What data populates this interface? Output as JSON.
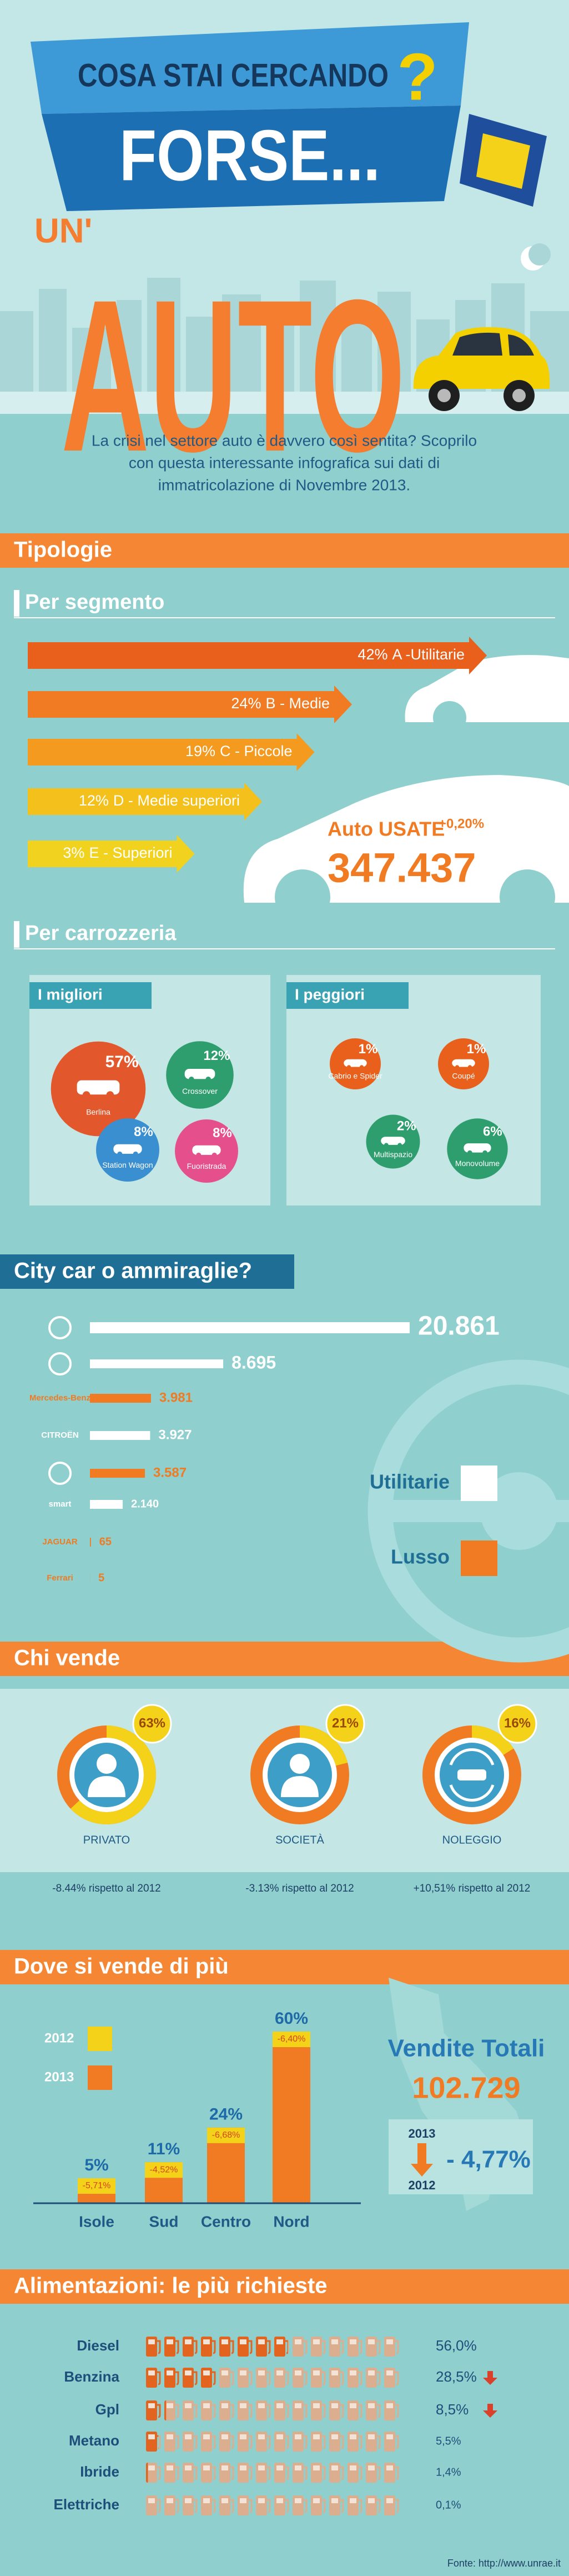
{
  "header": {
    "line1": "COSA STAI CERCANDO",
    "question_mark": "?",
    "line2": "FORSE...",
    "line3": "UN'",
    "line4": "AUTO"
  },
  "intro": [
    "La crisi nel settore auto è davvero così sentita? Scoprilo",
    "con questa interessante infografica sui dati di",
    "immatricolazione di Novembre 2013."
  ],
  "sections": {
    "tipologie": "Tipologie",
    "segmento": "Per segmento",
    "carrozzeria": "Per carrozzeria",
    "citycar": "City car o ammiraglie?",
    "chi_vende": "Chi vende",
    "dove": "Dove si vende di più",
    "alimentazioni": "Alimentazioni: le più richieste"
  },
  "used_cars": {
    "label": "Auto USATE",
    "change": "+0,20%",
    "value": "347.437"
  },
  "totals": {
    "title": "Vendite Totali",
    "value": "102.729",
    "year_from": "2013",
    "year_to": "2012",
    "change": "- 4,77%"
  },
  "source": "Fonte: http://www.unrae.it",
  "chart_data": [
    {
      "type": "arrow-bar",
      "categories": [
        "A -Utilitarie",
        "B - Medie",
        "C - Piccole",
        "D - Medie superiori",
        "E - Superiori"
      ],
      "values": [
        42,
        24,
        19,
        12,
        3
      ],
      "value_labels": [
        "42%",
        "24%",
        "19%",
        "12%",
        "3%"
      ],
      "colors": [
        "#e8601c",
        "#f07b22",
        "#f39a1f",
        "#f3c01c",
        "#f1d21e"
      ]
    },
    {
      "type": "bubble",
      "title": "I migliori",
      "categories": [
        "Berlina",
        "Crossover",
        "Station Wagon",
        "Fuoristrada"
      ],
      "values": [
        57,
        12,
        8,
        8
      ],
      "value_labels": [
        "57%",
        "12%",
        "8%",
        "8%"
      ],
      "colors": [
        "#e2572b",
        "#2f9e6e",
        "#3a8fd0",
        "#e5508c"
      ]
    },
    {
      "type": "bubble",
      "title": "I peggiori",
      "categories": [
        "Cabrio e Spider",
        "Coupé",
        "Multispazio",
        "Monovolume"
      ],
      "values": [
        1,
        1,
        2,
        6
      ],
      "value_labels": [
        "1%",
        "1%",
        "2%",
        "6%"
      ],
      "colors": [
        "#e8601c",
        "#e8601c",
        "#2f9e6e",
        "#2f9e6e"
      ]
    },
    {
      "type": "hbar",
      "categories": [
        null,
        null,
        "Mercedes-Benz",
        "CITROËN",
        null,
        "smart",
        "JAGUAR",
        "Ferrari"
      ],
      "values": [
        20861,
        8695,
        3981,
        3927,
        3587,
        2140,
        65,
        5
      ],
      "value_labels": [
        "20.861",
        "8.695",
        "3.981",
        "3.927",
        "3.587",
        "2.140",
        "65",
        "5"
      ],
      "colors": [
        "#ffffff",
        "#ffffff",
        "#f07b22",
        "#ffffff",
        "#f07b22",
        "#ffffff",
        "#f07b22",
        "#f07b22"
      ],
      "legend": [
        {
          "name": "Utilitarie",
          "color": "#ffffff"
        },
        {
          "name": "Lusso",
          "color": "#f07b22"
        }
      ]
    },
    {
      "type": "donut",
      "categories": [
        "PRIVATO",
        "SOCIETÀ",
        "NOLEGGIO"
      ],
      "values": [
        63,
        21,
        16
      ],
      "value_labels": [
        "63%",
        "21%",
        "16%"
      ],
      "notes": [
        "-8.44% rispetto al 2012",
        "-3.13% rispetto al 2012",
        "+10,51% rispetto al 2012"
      ],
      "colors": [
        "#f5d21a",
        "#f07b22"
      ]
    },
    {
      "type": "bar",
      "categories": [
        "Isole",
        "Sud",
        "Centro",
        "Nord"
      ],
      "values": [
        5,
        11,
        24,
        60
      ],
      "value_labels": [
        "5%",
        "11%",
        "24%",
        "60%"
      ],
      "change_labels": [
        "-5,71%",
        "-4,52%",
        "-6,68%",
        "-6,40%"
      ],
      "legend": [
        {
          "name": "2012",
          "color": "#f5d21a"
        },
        {
          "name": "2013",
          "color": "#f07b22"
        }
      ]
    },
    {
      "type": "pictogram",
      "categories": [
        "Diesel",
        "Benzina",
        "Gpl",
        "Metano",
        "Ibride",
        "Elettriche"
      ],
      "values": [
        56.0,
        28.5,
        8.5,
        5.5,
        1.4,
        0.1
      ],
      "value_labels": [
        "56,0%",
        "28,5%",
        "8,5%",
        "5,5%",
        "1,4%",
        "0,1%"
      ],
      "colors": [
        "#e2641f",
        "#dcae90"
      ]
    }
  ]
}
